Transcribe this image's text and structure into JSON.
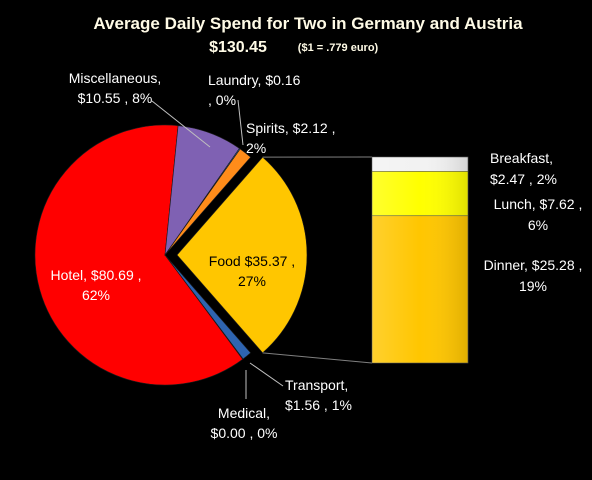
{
  "chart_data": {
    "type": "pie",
    "title": "Average Daily Spend for Two in Germany and Austria",
    "subtitle_total": "$130.45",
    "subtitle_note": "($1 = .779 euro)",
    "slices": [
      {
        "name": "Hotel",
        "value": 80.69,
        "percent": 62,
        "color": "#ff0000",
        "label": [
          "Hotel, $80.69 ,",
          "62%"
        ]
      },
      {
        "name": "Miscellaneous",
        "value": 10.55,
        "percent": 8,
        "color": "#7f61b3",
        "label": [
          "Miscellaneous,",
          "$10.55 , 8%"
        ]
      },
      {
        "name": "Laundry",
        "value": 0.16,
        "percent": 0,
        "color": "#3a7ccf",
        "label": [
          "Laundry, $0.16",
          ", 0%"
        ]
      },
      {
        "name": "Spirits",
        "value": 2.12,
        "percent": 2,
        "color": "#ff8c1a",
        "label": [
          "Spirits, $2.12 ,",
          "2%"
        ]
      },
      {
        "name": "Food",
        "value": 35.37,
        "percent": 27,
        "color": "#ffc600",
        "label": [
          "Food $35.37 ,",
          "27%"
        ]
      },
      {
        "name": "Transport",
        "value": 1.56,
        "percent": 1,
        "color": "#2e64b0",
        "label": [
          "Transport,",
          "$1.56 , 1%"
        ]
      },
      {
        "name": "Medical",
        "value": 0.0,
        "percent": 0,
        "color": "#4a7fd0",
        "label": [
          "Medical,",
          "$0.00 , 0%"
        ]
      }
    ],
    "breakdown": {
      "parent": "Food",
      "items": [
        {
          "name": "Breakfast",
          "value": 2.47,
          "percent": 2,
          "color": "#f2f2f2",
          "label": [
            "Breakfast,",
            "$2.47 , 2%"
          ]
        },
        {
          "name": "Lunch",
          "value": 7.62,
          "percent": 6,
          "color": "#ffff00",
          "label": [
            "Lunch, $7.62 ,",
            "6%"
          ]
        },
        {
          "name": "Dinner",
          "value": 25.28,
          "percent": 19,
          "color": "#ffc600",
          "label": [
            "Dinner, $25.28 ,",
            "19%"
          ]
        }
      ]
    }
  }
}
